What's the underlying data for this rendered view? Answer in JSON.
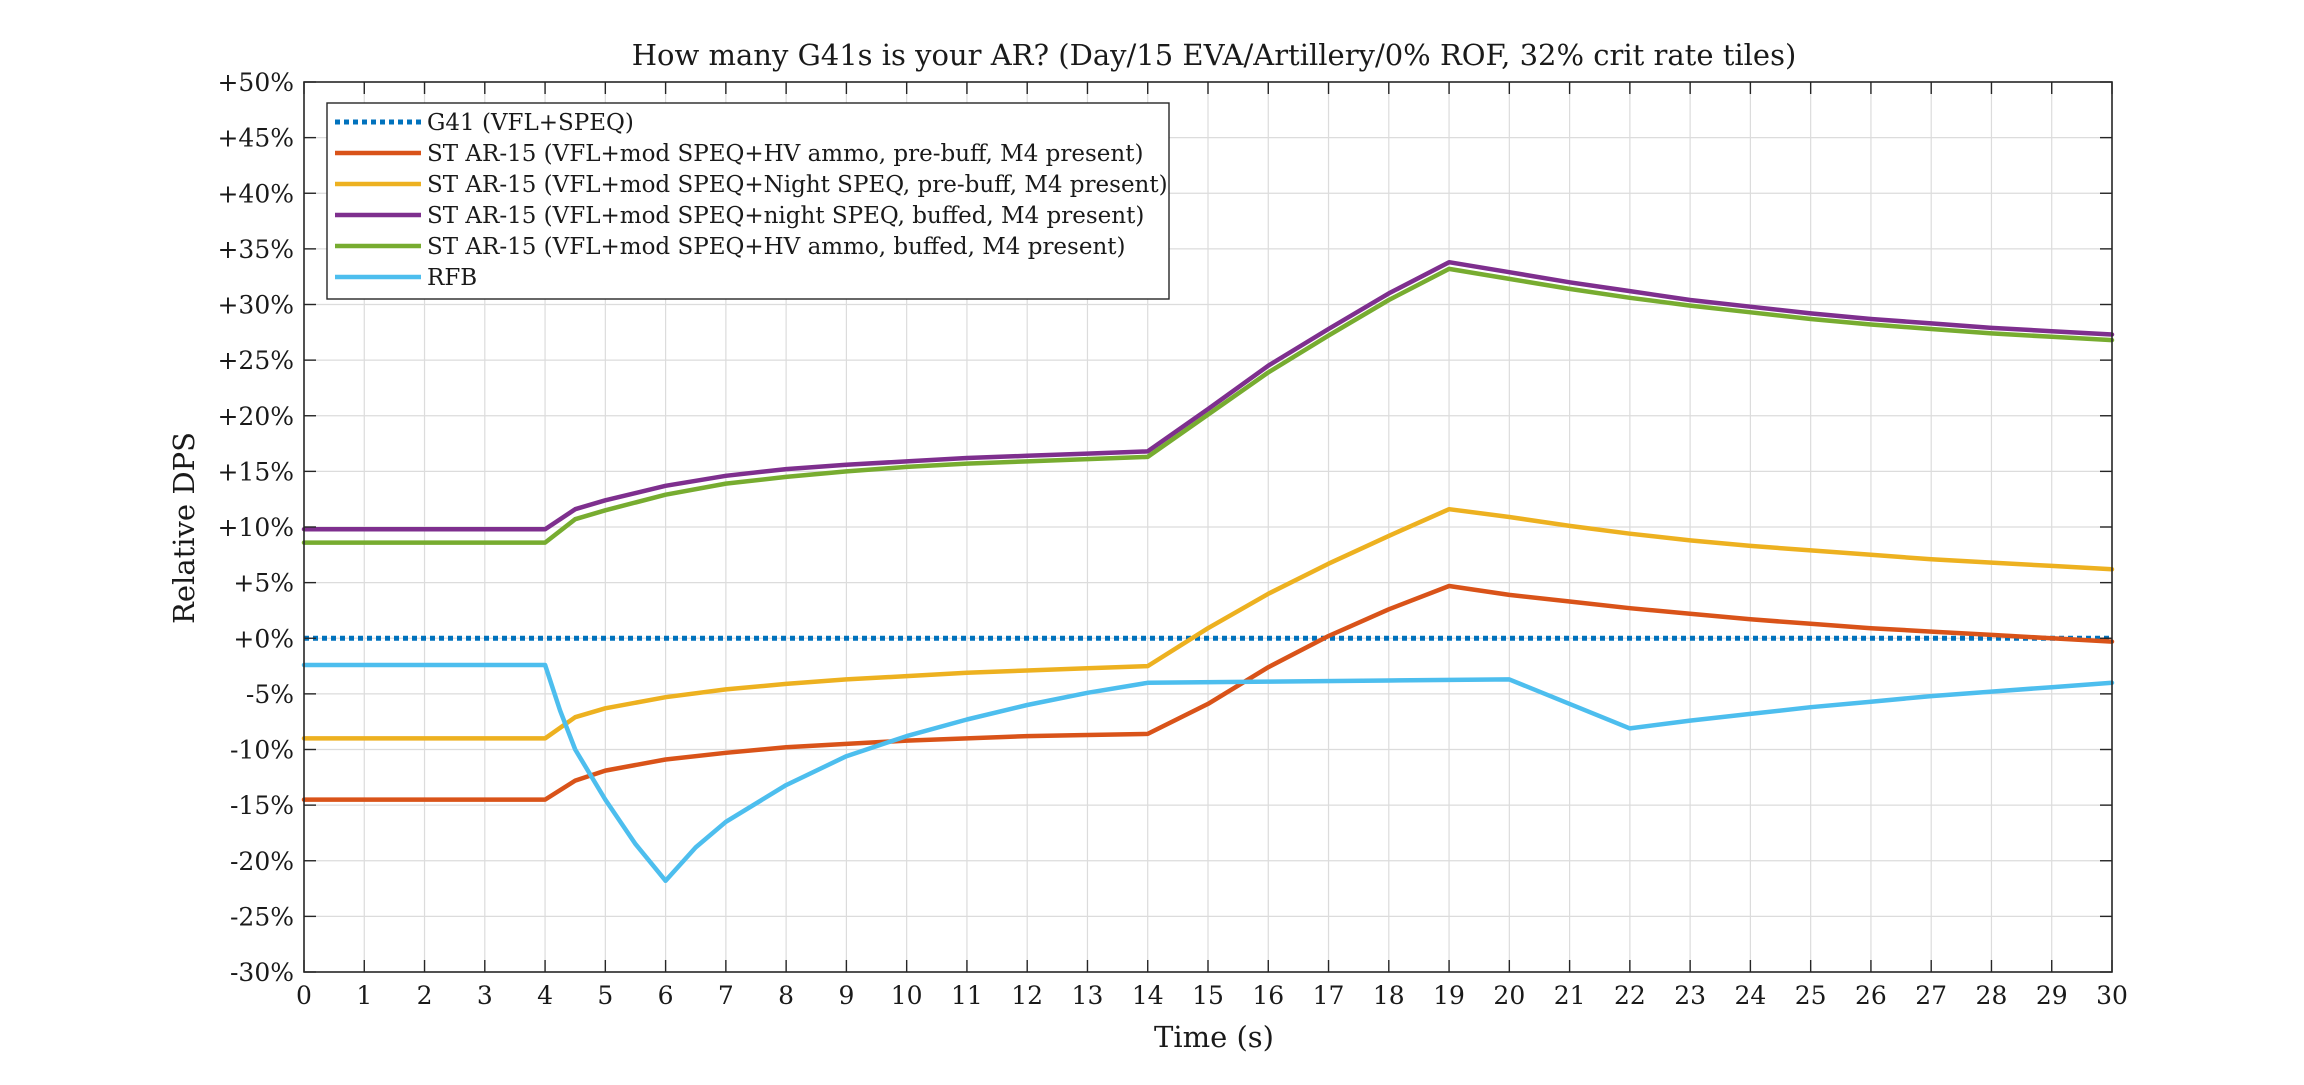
{
  "chart_data": {
    "type": "line",
    "title": "How many G41s is your AR? (Day/15 EVA/Artillery/0% ROF, 32% crit rate tiles)",
    "xlabel": "Time (s)",
    "ylabel": "Relative DPS",
    "xlim": [
      0,
      30
    ],
    "ylim": [
      -30,
      50
    ],
    "x_ticks": [
      0,
      1,
      2,
      3,
      4,
      5,
      6,
      7,
      8,
      9,
      10,
      11,
      12,
      13,
      14,
      15,
      16,
      17,
      18,
      19,
      20,
      21,
      22,
      23,
      24,
      25,
      26,
      27,
      28,
      29,
      30
    ],
    "y_ticks": [
      -30,
      -25,
      -20,
      -15,
      -10,
      -5,
      0,
      5,
      10,
      15,
      20,
      25,
      30,
      35,
      40,
      45,
      50
    ],
    "y_tick_labels": [
      "-30%",
      "-25%",
      "-20%",
      "-15%",
      "-10%",
      "-5%",
      "+0%",
      "+5%",
      "+10%",
      "+15%",
      "+20%",
      "+25%",
      "+30%",
      "+35%",
      "+40%",
      "+45%",
      "+50%"
    ],
    "grid": true,
    "legend_position": "top-left",
    "series": [
      {
        "name": "G41 (VFL+SPEQ)",
        "color": "#0072BD",
        "dash": "dotted",
        "points": [
          [
            0,
            0
          ],
          [
            30,
            0
          ]
        ]
      },
      {
        "name": "ST AR-15 (VFL+mod SPEQ+HV ammo, pre-buff, M4 present)",
        "color": "#D95319",
        "dash": "solid",
        "points": [
          [
            0,
            -14.5
          ],
          [
            4,
            -14.5
          ],
          [
            4.5,
            -12.8
          ],
          [
            5,
            -11.9
          ],
          [
            6,
            -10.9
          ],
          [
            7,
            -10.3
          ],
          [
            8,
            -9.8
          ],
          [
            9,
            -9.5
          ],
          [
            10,
            -9.2
          ],
          [
            11,
            -9.0
          ],
          [
            12,
            -8.8
          ],
          [
            13,
            -8.7
          ],
          [
            14,
            -8.6
          ],
          [
            15,
            -5.9
          ],
          [
            16,
            -2.6
          ],
          [
            17,
            0.2
          ],
          [
            18,
            2.6
          ],
          [
            19,
            4.7
          ],
          [
            20,
            3.9
          ],
          [
            21,
            3.3
          ],
          [
            22,
            2.7
          ],
          [
            23,
            2.2
          ],
          [
            24,
            1.7
          ],
          [
            25,
            1.3
          ],
          [
            26,
            0.9
          ],
          [
            27,
            0.6
          ],
          [
            28,
            0.3
          ],
          [
            29,
            0.0
          ],
          [
            30,
            -0.3
          ]
        ]
      },
      {
        "name": "ST AR-15 (VFL+mod SPEQ+Night SPEQ, pre-buff, M4 present)",
        "color": "#EDB120",
        "dash": "solid",
        "points": [
          [
            0,
            -9.0
          ],
          [
            4,
            -9.0
          ],
          [
            4.5,
            -7.1
          ],
          [
            5,
            -6.3
          ],
          [
            6,
            -5.3
          ],
          [
            7,
            -4.6
          ],
          [
            8,
            -4.1
          ],
          [
            9,
            -3.7
          ],
          [
            10,
            -3.4
          ],
          [
            11,
            -3.1
          ],
          [
            12,
            -2.9
          ],
          [
            13,
            -2.7
          ],
          [
            14,
            -2.5
          ],
          [
            15,
            0.9
          ],
          [
            16,
            4.0
          ],
          [
            17,
            6.7
          ],
          [
            18,
            9.2
          ],
          [
            19,
            11.6
          ],
          [
            20,
            10.9
          ],
          [
            21,
            10.1
          ],
          [
            22,
            9.4
          ],
          [
            23,
            8.8
          ],
          [
            24,
            8.3
          ],
          [
            25,
            7.9
          ],
          [
            26,
            7.5
          ],
          [
            27,
            7.1
          ],
          [
            28,
            6.8
          ],
          [
            29,
            6.5
          ],
          [
            30,
            6.2
          ]
        ]
      },
      {
        "name": "ST AR-15 (VFL+mod SPEQ+night SPEQ, buffed, M4 present)",
        "color": "#7E2F8E",
        "dash": "solid",
        "points": [
          [
            0,
            9.8
          ],
          [
            4,
            9.8
          ],
          [
            4.5,
            11.6
          ],
          [
            5,
            12.4
          ],
          [
            6,
            13.7
          ],
          [
            7,
            14.6
          ],
          [
            8,
            15.2
          ],
          [
            9,
            15.6
          ],
          [
            10,
            15.9
          ],
          [
            11,
            16.2
          ],
          [
            12,
            16.4
          ],
          [
            13,
            16.6
          ],
          [
            14,
            16.8
          ],
          [
            15,
            20.6
          ],
          [
            16,
            24.5
          ],
          [
            17,
            27.8
          ],
          [
            18,
            31.0
          ],
          [
            19,
            33.8
          ],
          [
            20,
            32.9
          ],
          [
            21,
            32.0
          ],
          [
            22,
            31.2
          ],
          [
            23,
            30.4
          ],
          [
            24,
            29.8
          ],
          [
            25,
            29.2
          ],
          [
            26,
            28.7
          ],
          [
            27,
            28.3
          ],
          [
            28,
            27.9
          ],
          [
            29,
            27.6
          ],
          [
            30,
            27.3
          ]
        ]
      },
      {
        "name": "ST AR-15 (VFL+mod SPEQ+HV ammo, buffed, M4 present)",
        "color": "#77AC30",
        "dash": "solid",
        "points": [
          [
            0,
            8.6
          ],
          [
            4,
            8.6
          ],
          [
            4.5,
            10.7
          ],
          [
            5,
            11.5
          ],
          [
            6,
            12.9
          ],
          [
            7,
            13.9
          ],
          [
            8,
            14.5
          ],
          [
            9,
            15.0
          ],
          [
            10,
            15.4
          ],
          [
            11,
            15.7
          ],
          [
            12,
            15.9
          ],
          [
            13,
            16.1
          ],
          [
            14,
            16.3
          ],
          [
            15,
            20.1
          ],
          [
            16,
            23.9
          ],
          [
            17,
            27.2
          ],
          [
            18,
            30.4
          ],
          [
            19,
            33.2
          ],
          [
            20,
            32.3
          ],
          [
            21,
            31.4
          ],
          [
            22,
            30.6
          ],
          [
            23,
            29.9
          ],
          [
            24,
            29.3
          ],
          [
            25,
            28.7
          ],
          [
            26,
            28.2
          ],
          [
            27,
            27.8
          ],
          [
            28,
            27.4
          ],
          [
            29,
            27.1
          ],
          [
            30,
            26.8
          ]
        ]
      },
      {
        "name": "RFB",
        "color": "#4DBEEE",
        "dash": "solid",
        "points": [
          [
            0,
            -2.4
          ],
          [
            4,
            -2.4
          ],
          [
            4.25,
            -6.5
          ],
          [
            4.5,
            -10.0
          ],
          [
            5,
            -14.5
          ],
          [
            5.5,
            -18.5
          ],
          [
            6,
            -21.8
          ],
          [
            6.5,
            -18.8
          ],
          [
            7,
            -16.5
          ],
          [
            8,
            -13.2
          ],
          [
            9,
            -10.6
          ],
          [
            10,
            -8.8
          ],
          [
            11,
            -7.3
          ],
          [
            12,
            -6.0
          ],
          [
            13,
            -4.9
          ],
          [
            14,
            -4.0
          ],
          [
            16,
            -3.9
          ],
          [
            18,
            -3.8
          ],
          [
            20,
            -3.7
          ],
          [
            22,
            -8.1
          ],
          [
            23,
            -7.4
          ],
          [
            24,
            -6.8
          ],
          [
            25,
            -6.2
          ],
          [
            26,
            -5.7
          ],
          [
            27,
            -5.2
          ],
          [
            28,
            -4.8
          ],
          [
            29,
            -4.4
          ],
          [
            30,
            -4.0
          ]
        ]
      }
    ]
  }
}
